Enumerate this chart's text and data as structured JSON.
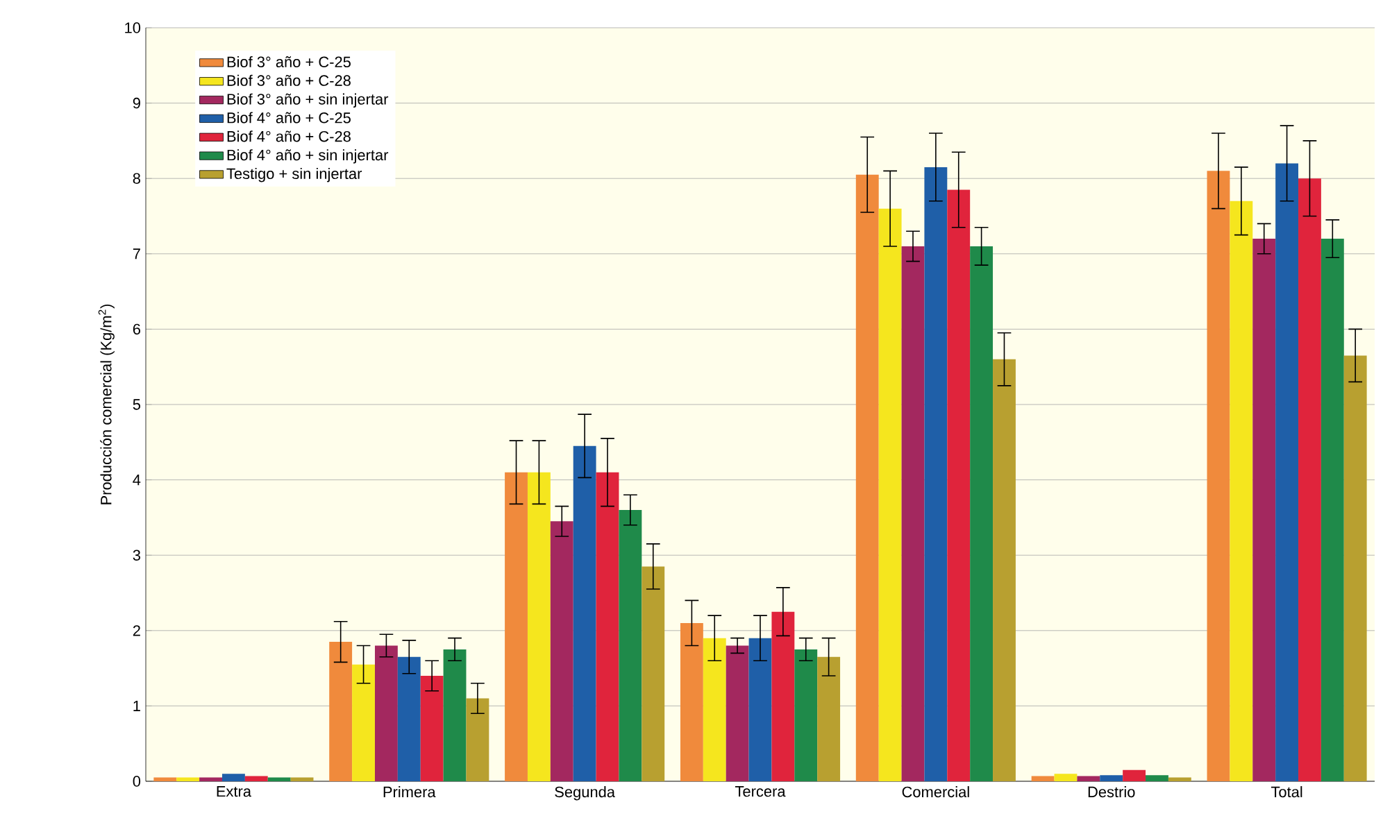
{
  "chart_data": {
    "type": "bar",
    "ylabel": "Producción comercial (Kg/m$^{2}$)",
    "categories": [
      "Extra",
      "Primera",
      "Segunda",
      "Tercera",
      "Comercial",
      "Destrio",
      "Total"
    ],
    "ylim": [
      0,
      10
    ],
    "yticks": [
      0,
      1,
      2,
      3,
      4,
      5,
      6,
      7,
      8,
      9,
      10
    ],
    "grid": "y",
    "legend": "top left",
    "series": [
      {
        "name": "Biof 3° año + C-25",
        "color": "#f08a3c",
        "values": [
          0.05,
          1.85,
          4.1,
          2.1,
          8.05,
          0.07,
          8.1
        ],
        "errors": [
          null,
          0.27,
          0.42,
          0.3,
          0.5,
          null,
          0.5
        ]
      },
      {
        "name": "Biof 3° año + C-28",
        "color": "#f5e61e",
        "values": [
          0.05,
          1.55,
          4.1,
          1.9,
          7.6,
          0.1,
          7.7
        ],
        "errors": [
          null,
          0.25,
          0.42,
          0.3,
          0.5,
          null,
          0.45
        ]
      },
      {
        "name": "Biof 3° año + sin injertar",
        "color": "#a3285f",
        "values": [
          0.05,
          1.8,
          3.45,
          1.8,
          7.1,
          0.07,
          7.2
        ],
        "errors": [
          null,
          0.15,
          0.2,
          0.1,
          0.2,
          null,
          0.2
        ]
      },
      {
        "name": "Biof 4° año + C-25",
        "color": "#1f5fa8",
        "values": [
          0.1,
          1.65,
          4.45,
          1.9,
          8.15,
          0.08,
          8.2
        ],
        "errors": [
          null,
          0.22,
          0.42,
          0.3,
          0.45,
          null,
          0.5
        ]
      },
      {
        "name": "Biof 4° año + C-28",
        "color": "#e0243c",
        "values": [
          0.07,
          1.4,
          4.1,
          2.25,
          7.85,
          0.15,
          8.0
        ],
        "errors": [
          null,
          0.2,
          0.45,
          0.32,
          0.5,
          null,
          0.5
        ]
      },
      {
        "name": "Biof 4° año + sin injertar",
        "color": "#1f8a4a",
        "values": [
          0.05,
          1.75,
          3.6,
          1.75,
          7.1,
          0.08,
          7.2
        ],
        "errors": [
          null,
          0.15,
          0.2,
          0.15,
          0.25,
          null,
          0.25
        ]
      },
      {
        "name": "Testigo + sin injertar",
        "color": "#b8a030",
        "values": [
          0.05,
          1.1,
          2.85,
          1.65,
          5.6,
          0.05,
          5.65
        ],
        "errors": [
          null,
          0.2,
          0.3,
          0.25,
          0.35,
          null,
          0.35
        ]
      }
    ]
  }
}
